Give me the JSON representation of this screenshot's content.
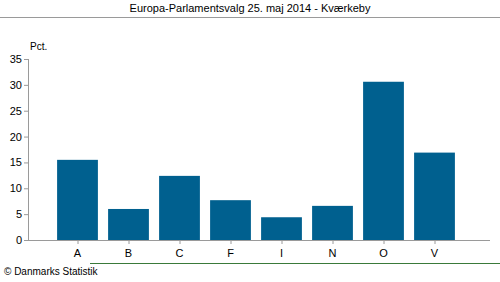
{
  "chart_data": {
    "type": "bar",
    "title": "Europa-Parlamentsvalg 25. maj 2014 - Kværkeby",
    "y_label": "Pct.",
    "source": "© Danmarks Statistik",
    "categories": [
      "A",
      "B",
      "C",
      "F",
      "I",
      "N",
      "O",
      "V"
    ],
    "values": [
      15.5,
      6.0,
      12.4,
      7.7,
      4.4,
      6.6,
      30.6,
      16.9
    ],
    "color": "#00608f",
    "ylim": [
      0,
      35
    ],
    "yticks": [
      0,
      5,
      10,
      15,
      20,
      25,
      30,
      35
    ],
    "grid": false
  }
}
